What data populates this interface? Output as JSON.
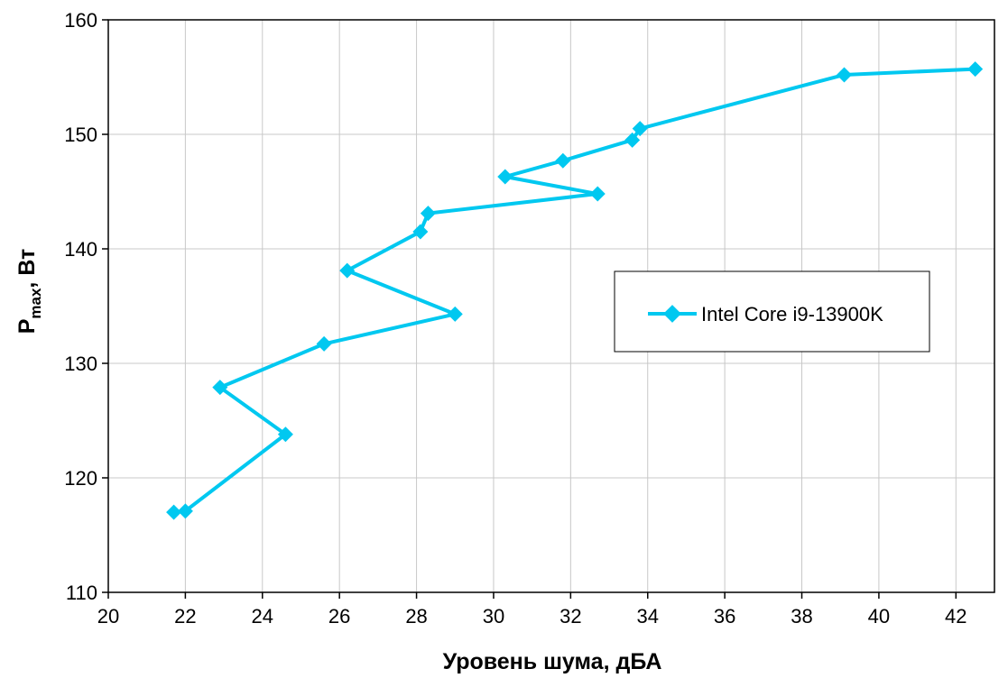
{
  "chart_data": {
    "type": "line",
    "xlabel": "Уровень шума, дБА",
    "ylabel": {
      "main": "P",
      "sub": "max",
      "rest": ", Вт"
    },
    "xlim": [
      20,
      43
    ],
    "ylim": [
      110,
      160
    ],
    "xticks": [
      20,
      22,
      24,
      26,
      28,
      30,
      32,
      34,
      36,
      38,
      40,
      42
    ],
    "yticks": [
      110,
      120,
      130,
      140,
      150,
      160
    ],
    "grid": true,
    "legend_position": "right",
    "series": [
      {
        "name": "Intel Core i9-13900K",
        "color": "#00c8f0",
        "marker": "diamond",
        "x": [
          21.7,
          22.0,
          24.6,
          22.9,
          25.6,
          29.0,
          26.2,
          28.1,
          28.3,
          32.7,
          30.3,
          31.8,
          33.6,
          33.8,
          39.1,
          42.5
        ],
        "y": [
          117.0,
          117.1,
          123.8,
          127.9,
          131.7,
          134.3,
          138.1,
          141.5,
          143.1,
          144.8,
          146.3,
          147.7,
          149.5,
          150.5,
          155.2,
          155.7
        ]
      }
    ]
  }
}
